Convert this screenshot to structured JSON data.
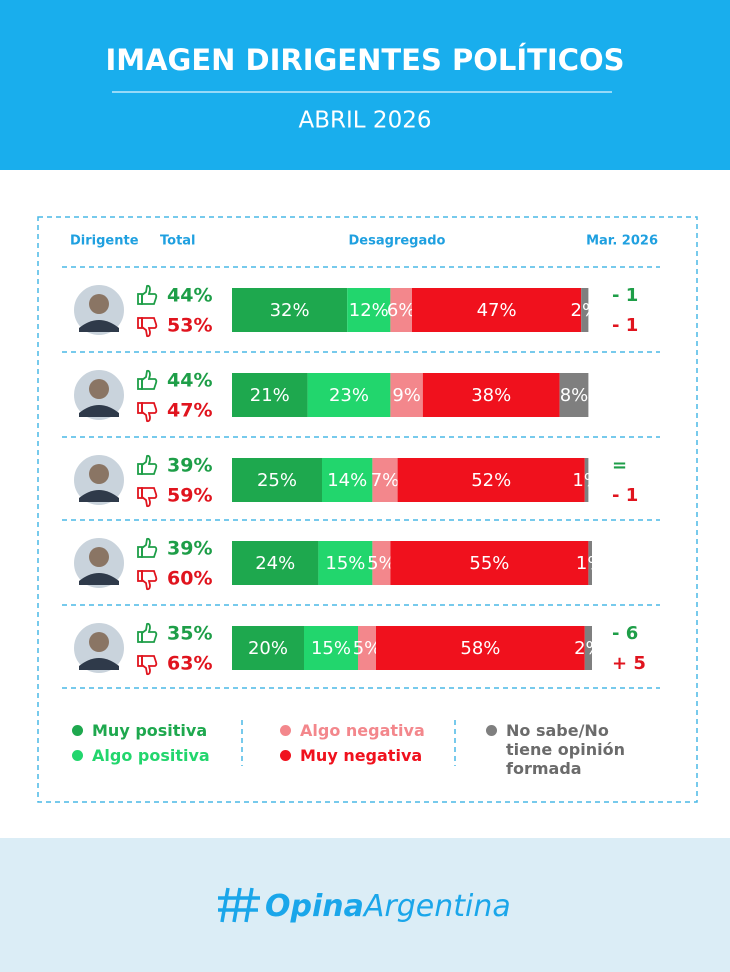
{
  "chart_data": {
    "type": "bar",
    "stacked": true,
    "orientation": "horizontal",
    "title": "IMAGEN DIRIGENTES POLÍTICOS",
    "subtitle": "ABRIL 2026",
    "column_headers": {
      "leader": "Dirigente",
      "total": "Total",
      "breakdown": "Desagregado",
      "previous": "Mar. 2026"
    },
    "xlim": [
      0,
      100
    ],
    "series": [
      {
        "name": "Muy positiva",
        "color": "#1ea84e",
        "values": [
          32,
          21,
          25,
          24,
          20
        ],
        "value_labels": [
          "32%",
          "21%",
          "25%",
          "24%",
          "20%"
        ]
      },
      {
        "name": "Algo positiva",
        "color": "#22d66d",
        "values": [
          12,
          23,
          14,
          15,
          15
        ],
        "value_labels": [
          "12%",
          "23%",
          "14%",
          "15%",
          "15%"
        ]
      },
      {
        "name": "Algo negativa",
        "color": "#f3878c",
        "values": [
          6,
          9,
          7,
          5,
          5
        ],
        "value_labels": [
          "6%",
          "9%",
          "7%",
          "5%",
          "5%"
        ]
      },
      {
        "name": "Muy negativa",
        "color": "#f0111d",
        "values": [
          47,
          38,
          52,
          55,
          58
        ],
        "value_labels": [
          "47%",
          "38%",
          "52%",
          "55%",
          "58%"
        ]
      },
      {
        "name": "No sabe/No tiene opinión formada",
        "color": "#7f7f7f",
        "values": [
          2,
          8,
          1,
          1,
          2
        ],
        "value_labels": [
          "2%",
          "8%",
          "1%",
          "1%",
          "2%"
        ]
      }
    ],
    "totals": {
      "positive": {
        "color": "#1e9e48",
        "values": [
          44,
          44,
          39,
          39,
          35
        ],
        "value_labels": [
          "44%",
          "44%",
          "39%",
          "39%",
          "35%"
        ]
      },
      "negative": {
        "color": "#e0141e",
        "values": [
          53,
          47,
          59,
          60,
          63
        ],
        "value_labels": [
          "53%",
          "47%",
          "59%",
          "60%",
          "63%"
        ]
      }
    },
    "changes": {
      "positive": [
        "- 1",
        null,
        "=",
        null,
        "- 6"
      ],
      "negative": [
        "- 1",
        null,
        "- 1",
        null,
        "+ 5"
      ]
    }
  },
  "footer": {
    "brand_bold": "Opina",
    "brand_regular": "Argentina"
  }
}
